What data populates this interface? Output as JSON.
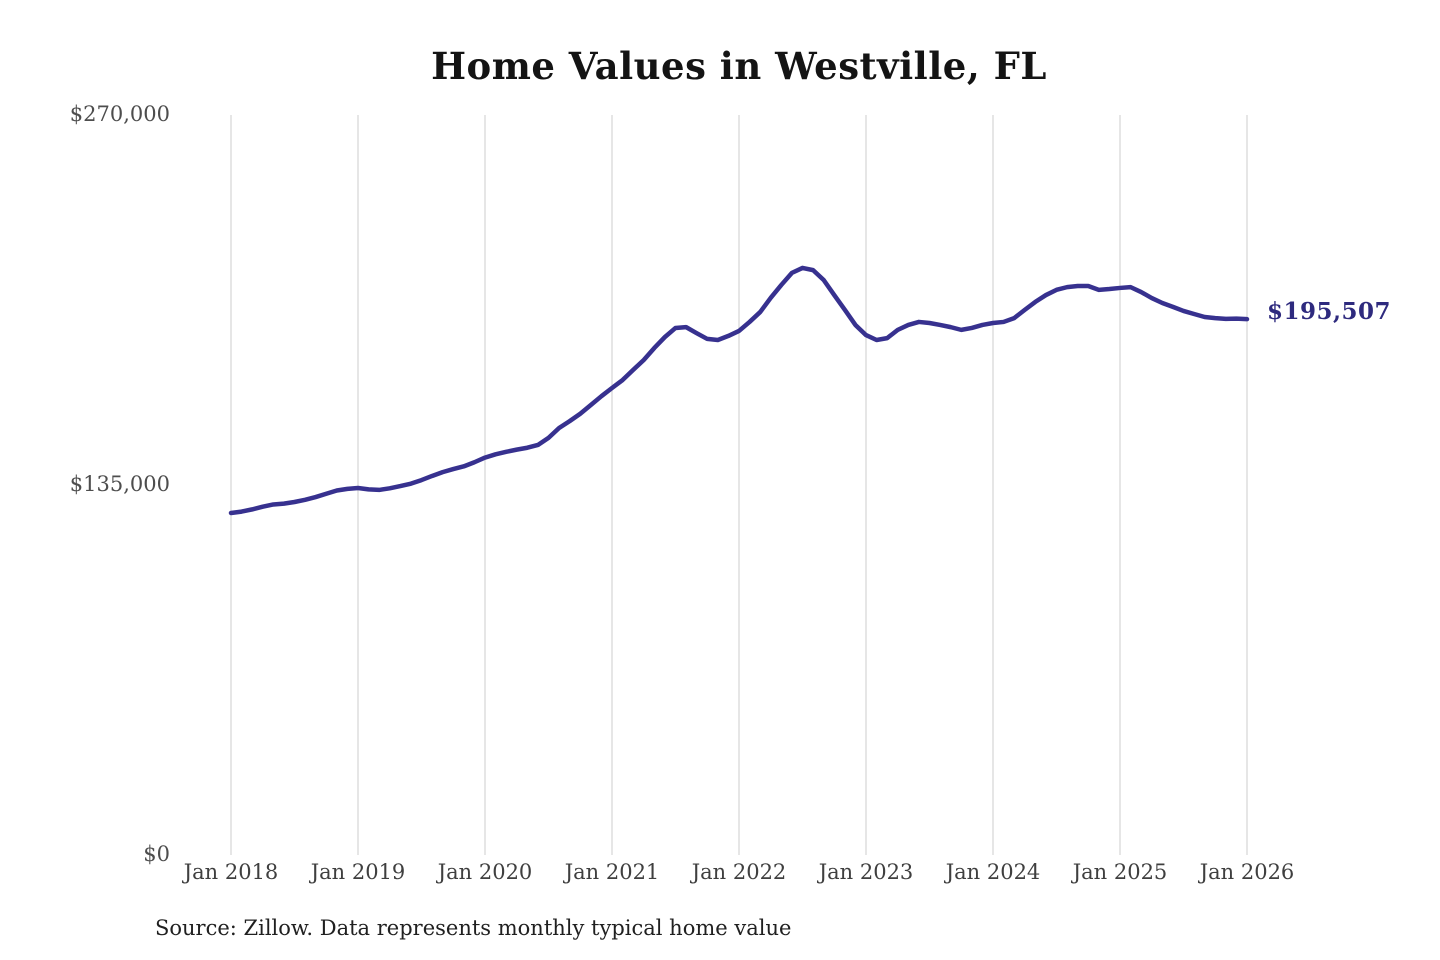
{
  "page": {
    "title": "Home Values in Westville, FL",
    "end_value_label": "$195,507",
    "source_note": "Source: Zillow. Data represents monthly typical home value"
  },
  "axis": {
    "y_ticks": [
      "$270,000",
      "$135,000",
      "$0"
    ],
    "x_ticks": [
      "Jan 2018",
      "Jan 2019",
      "Jan 2020",
      "Jan 2021",
      "Jan 2022",
      "Jan 2023",
      "Jan 2024",
      "Jan 2025",
      "Jan 2026"
    ]
  },
  "colors": {
    "line": "#37318f",
    "annotation": "#2e2a7e",
    "gridline": "#cccccc",
    "axis_text": "#4d4d4d",
    "title_text": "#141414",
    "source_text": "#202020"
  },
  "chart_data": {
    "type": "line",
    "title": "Home Values in Westville, FL",
    "xlabel": "",
    "ylabel": "",
    "ylim": [
      0,
      270000
    ],
    "y_tick_values": [
      0,
      135000,
      270000
    ],
    "y_tick_labels": [
      "$0",
      "$135,000",
      "$270,000"
    ],
    "x_tick_labels": [
      "Jan 2018",
      "Jan 2019",
      "Jan 2020",
      "Jan 2021",
      "Jan 2022",
      "Jan 2023",
      "Jan 2024",
      "Jan 2025",
      "Jan 2026"
    ],
    "frequency": "monthly",
    "x_start": "Jan 2018",
    "x_end": "Jan 2026",
    "grid": "vertical-only",
    "legend_position": "none",
    "end_label": "$195,507",
    "final_value": 195507,
    "series": [
      {
        "name": "Typical home value",
        "values": [
          124800,
          125300,
          126100,
          127100,
          127900,
          128200,
          128800,
          129600,
          130600,
          131800,
          133000,
          133600,
          133900,
          133400,
          133200,
          133800,
          134600,
          135500,
          136800,
          138300,
          139700,
          140800,
          141800,
          143300,
          145000,
          146200,
          147100,
          147900,
          148600,
          149600,
          152200,
          155800,
          158300,
          161000,
          164200,
          167400,
          170400,
          173300,
          177000,
          180600,
          185000,
          189000,
          192300,
          192600,
          190400,
          188300,
          187900,
          189400,
          191200,
          194500,
          198100,
          203300,
          208000,
          212400,
          214200,
          213400,
          209800,
          204300,
          198900,
          193400,
          189700,
          187900,
          188600,
          191600,
          193400,
          194500,
          194100,
          193400,
          192600,
          191600,
          192300,
          193400,
          194100,
          194500,
          195900,
          198900,
          201800,
          204300,
          206200,
          207200,
          207600,
          207600,
          206200,
          206500,
          206900,
          207200,
          205400,
          203200,
          201400,
          200000,
          198500,
          197400,
          196300,
          195900,
          195600,
          195700,
          195507
        ]
      }
    ]
  }
}
